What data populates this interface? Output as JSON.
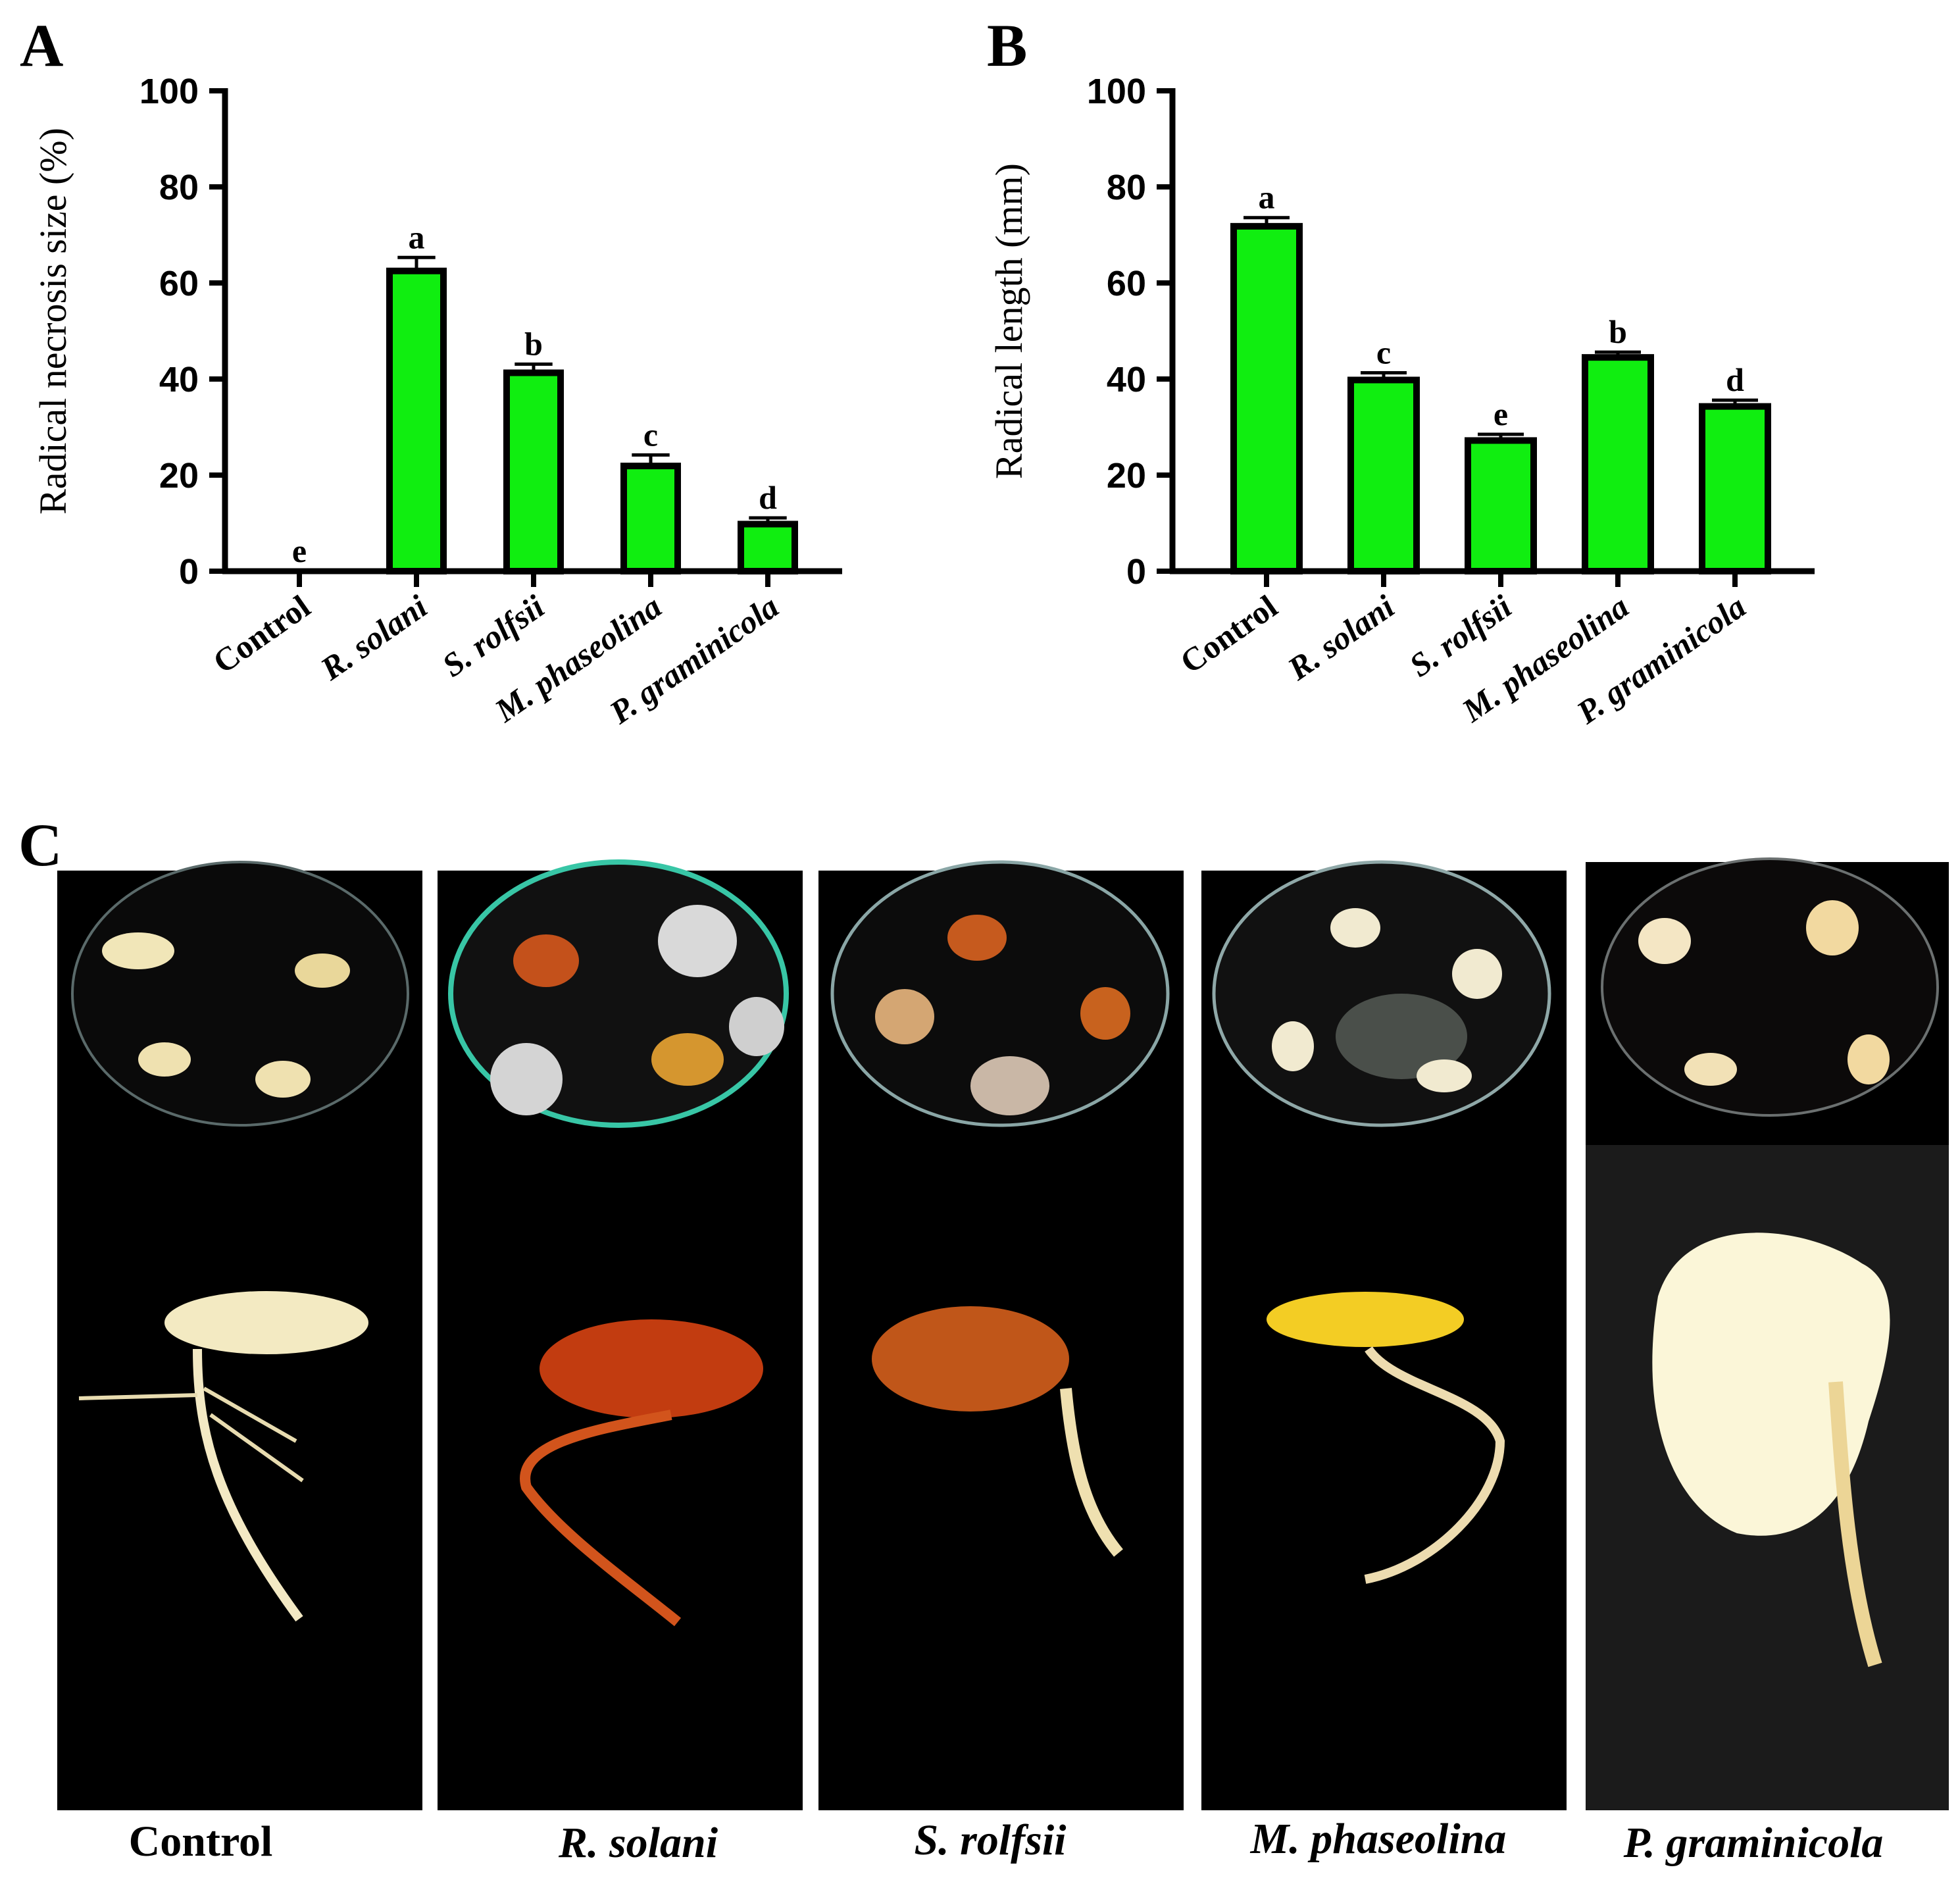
{
  "chart_data": [
    {
      "panel": "A",
      "type": "bar",
      "title": "",
      "xlabel": "",
      "ylabel": "Radical necrosis size (%)",
      "ylim": [
        0,
        100
      ],
      "yticks": [
        0,
        20,
        40,
        60,
        80,
        100
      ],
      "categories": [
        "Control",
        "R. solani",
        "S. rolfsii",
        "M. phaseolina",
        "P. graminicola"
      ],
      "values": [
        0,
        62.5,
        41.3,
        21.9,
        9.8
      ],
      "errors": [
        0,
        2.8,
        1.8,
        2.3,
        1.3
      ],
      "significance": [
        "e",
        "a",
        "b",
        "c",
        "d"
      ],
      "bar_color": "#10ee10"
    },
    {
      "panel": "B",
      "type": "bar",
      "title": "",
      "xlabel": "",
      "ylabel": "Radical length (mm)",
      "ylim": [
        0,
        100
      ],
      "yticks": [
        0,
        20,
        40,
        60,
        80,
        100
      ],
      "categories": [
        "Control",
        "R. solani",
        "S. rolfsii",
        "M. phaseolina",
        "P. graminicola"
      ],
      "values": [
        71.8,
        39.8,
        27.2,
        44.5,
        34.3
      ],
      "errors": [
        1.8,
        1.5,
        1.3,
        1.1,
        1.3
      ],
      "significance": [
        "a",
        "c",
        "e",
        "b",
        "d"
      ],
      "bar_color": "#10ee10"
    }
  ],
  "panel_c": {
    "letter": "C",
    "captions": [
      "Control",
      "R. solani",
      "S. rolfsii",
      "M. phaseolina",
      "P. graminicola"
    ]
  }
}
